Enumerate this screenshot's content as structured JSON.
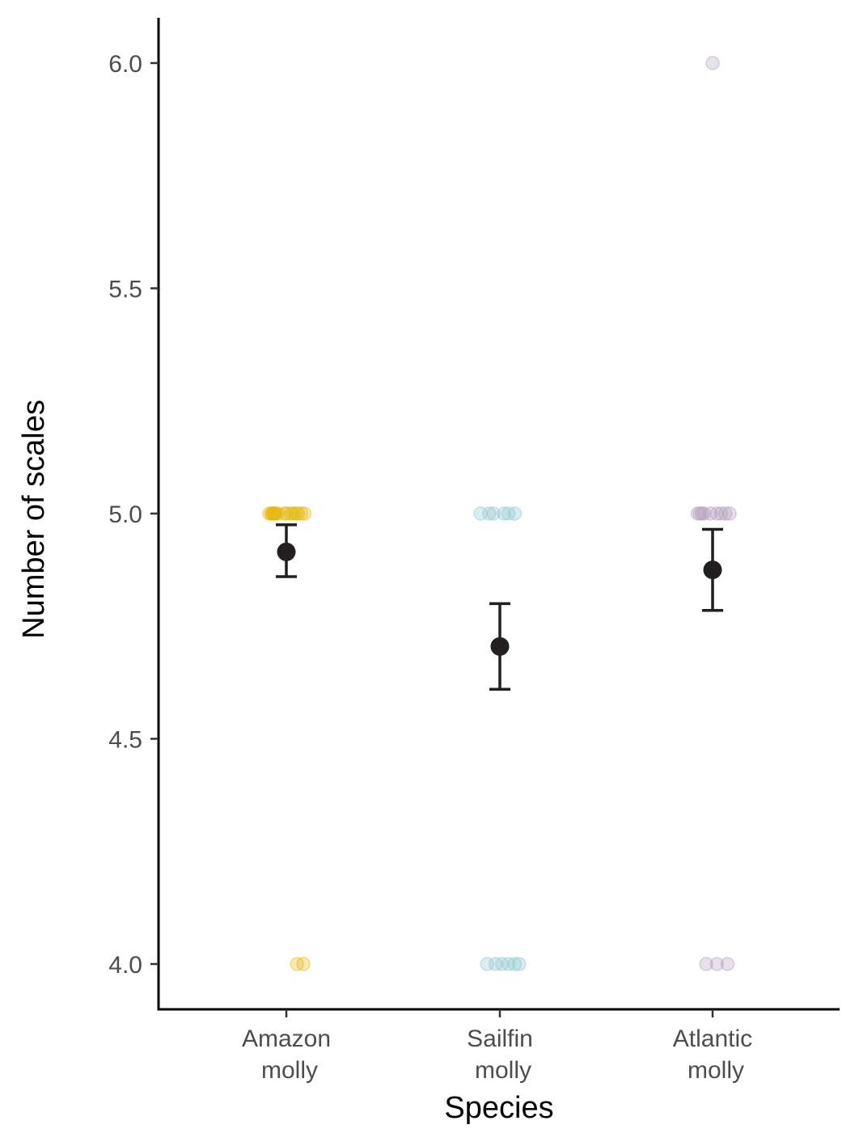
{
  "chart_data": {
    "type": "scatter",
    "xlabel": "Species",
    "ylabel": "Number of scales",
    "ylim": [
      3.9,
      6.1
    ],
    "yticks": [
      "4.0",
      "4.5",
      "5.0",
      "5.5",
      "6.0"
    ],
    "categories": [
      {
        "lines": [
          "Amazon",
          "molly"
        ],
        "color": "#e3b505"
      },
      {
        "lines": [
          "Sailfin",
          "molly"
        ],
        "color": "#8cc3ce"
      },
      {
        "lines": [
          "Atlantic",
          "molly"
        ],
        "color": "#b19cb9"
      }
    ],
    "jitter_points": [
      {
        "category": 0,
        "y": 5.0,
        "dx": -0.08
      },
      {
        "category": 0,
        "y": 5.0,
        "dx": -0.07
      },
      {
        "category": 0,
        "y": 5.0,
        "dx": -0.065
      },
      {
        "category": 0,
        "y": 5.0,
        "dx": -0.06
      },
      {
        "category": 0,
        "y": 5.0,
        "dx": -0.055
      },
      {
        "category": 0,
        "y": 5.0,
        "dx": -0.05
      },
      {
        "category": 0,
        "y": 5.0,
        "dx": -0.04
      },
      {
        "category": 0,
        "y": 5.0,
        "dx": -0.01
      },
      {
        "category": 0,
        "y": 5.0,
        "dx": 0.0
      },
      {
        "category": 0,
        "y": 5.0,
        "dx": 0.02
      },
      {
        "category": 0,
        "y": 5.0,
        "dx": 0.03
      },
      {
        "category": 0,
        "y": 5.0,
        "dx": 0.045
      },
      {
        "category": 0,
        "y": 5.0,
        "dx": 0.055
      },
      {
        "category": 0,
        "y": 5.0,
        "dx": 0.07
      },
      {
        "category": 0,
        "y": 5.0,
        "dx": 0.085
      },
      {
        "category": 0,
        "y": 4.0,
        "dx": 0.05
      },
      {
        "category": 0,
        "y": 4.0,
        "dx": 0.08
      },
      {
        "category": 1,
        "y": 5.0,
        "dx": -0.09
      },
      {
        "category": 1,
        "y": 5.0,
        "dx": -0.05
      },
      {
        "category": 1,
        "y": 5.0,
        "dx": -0.03
      },
      {
        "category": 1,
        "y": 5.0,
        "dx": 0.02
      },
      {
        "category": 1,
        "y": 5.0,
        "dx": 0.04
      },
      {
        "category": 1,
        "y": 5.0,
        "dx": 0.07
      },
      {
        "category": 1,
        "y": 4.0,
        "dx": -0.06
      },
      {
        "category": 1,
        "y": 4.0,
        "dx": -0.02
      },
      {
        "category": 1,
        "y": 4.0,
        "dx": 0.01
      },
      {
        "category": 1,
        "y": 4.0,
        "dx": 0.04
      },
      {
        "category": 1,
        "y": 4.0,
        "dx": 0.07
      },
      {
        "category": 1,
        "y": 4.0,
        "dx": 0.09
      },
      {
        "category": 2,
        "y": 6.0,
        "dx": 0.0
      },
      {
        "category": 2,
        "y": 5.0,
        "dx": -0.07
      },
      {
        "category": 2,
        "y": 5.0,
        "dx": -0.06
      },
      {
        "category": 2,
        "y": 5.0,
        "dx": -0.05
      },
      {
        "category": 2,
        "y": 5.0,
        "dx": -0.04
      },
      {
        "category": 2,
        "y": 5.0,
        "dx": -0.01
      },
      {
        "category": 2,
        "y": 5.0,
        "dx": 0.02
      },
      {
        "category": 2,
        "y": 5.0,
        "dx": 0.04
      },
      {
        "category": 2,
        "y": 5.0,
        "dx": 0.06
      },
      {
        "category": 2,
        "y": 5.0,
        "dx": 0.08
      },
      {
        "category": 2,
        "y": 4.0,
        "dx": -0.03
      },
      {
        "category": 2,
        "y": 4.0,
        "dx": 0.02
      },
      {
        "category": 2,
        "y": 4.0,
        "dx": 0.07
      }
    ],
    "means": [
      {
        "category": 0,
        "mean": 4.915,
        "lower": 4.86,
        "upper": 4.975
      },
      {
        "category": 1,
        "mean": 4.705,
        "lower": 4.61,
        "upper": 4.8
      },
      {
        "category": 2,
        "mean": 4.875,
        "lower": 4.785,
        "upper": 4.965
      }
    ],
    "mean_color": "#231f20",
    "grid": false
  }
}
